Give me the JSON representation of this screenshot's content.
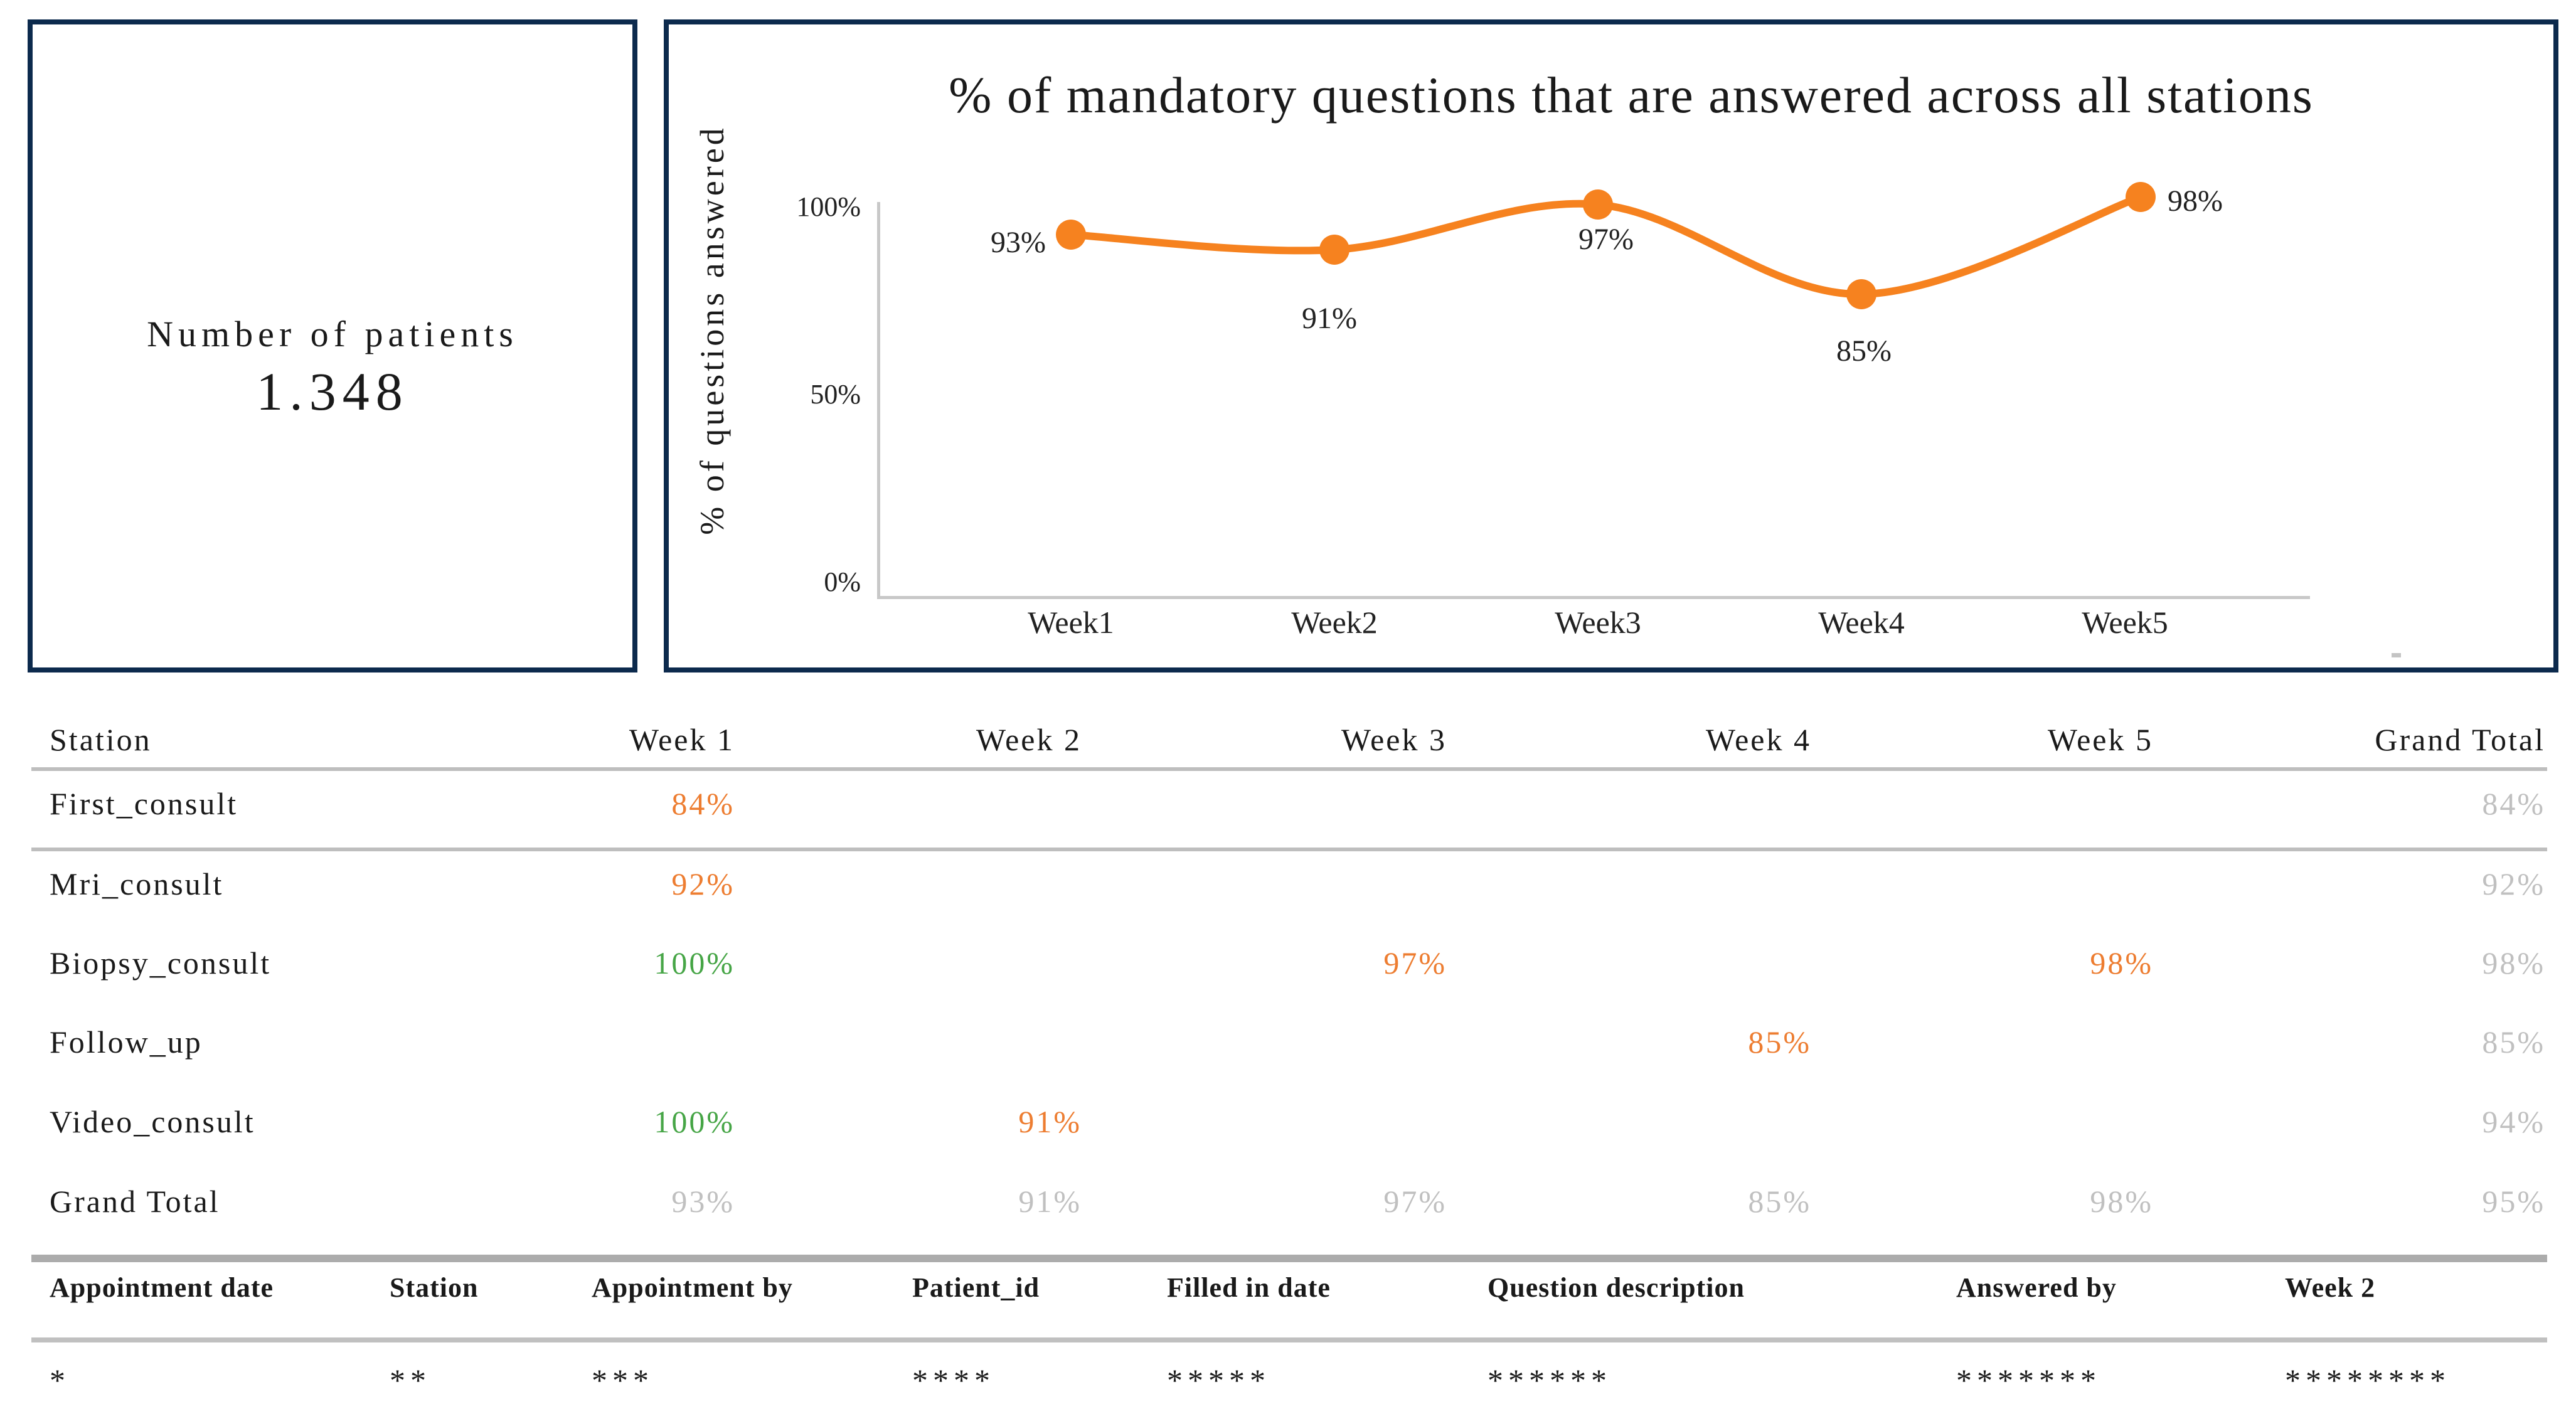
{
  "kpi_card": {
    "title": "Number of patients",
    "value": "1.348"
  },
  "chart": {
    "title": "% of mandatory questions that are answered across all stations",
    "y_axis_label": "% of questions answered",
    "y_ticks": [
      "100%",
      "50%",
      "0%"
    ]
  },
  "chart_data": {
    "type": "line",
    "title": "% of mandatory questions that are answered across all stations",
    "xlabel": "",
    "ylabel": "% of questions answered",
    "categories": [
      "Week1",
      "Week2",
      "Week3",
      "Week4",
      "Week5"
    ],
    "values": [
      93,
      91,
      97,
      85,
      98
    ],
    "data_labels": [
      "93%",
      "91%",
      "97%",
      "85%",
      "98%"
    ],
    "unit": "%",
    "ylim": [
      0,
      100
    ],
    "grid": false,
    "legend": "none",
    "series_color": "#F6821F"
  },
  "pivot_table": {
    "columns": [
      "Station",
      "Week 1",
      "Week 2",
      "Week 3",
      "Week 4",
      "Week 5",
      "Grand Total"
    ],
    "rows": [
      {
        "station": "First_consult",
        "cells": [
          {
            "col": "Week 1",
            "value": "84%",
            "style": "orange"
          },
          {
            "col": "Grand Total",
            "value": "84%",
            "style": "total"
          }
        ]
      },
      {
        "station": "Mri_consult",
        "cells": [
          {
            "col": "Week 1",
            "value": "92%",
            "style": "orange"
          },
          {
            "col": "Grand Total",
            "value": "92%",
            "style": "total"
          }
        ]
      },
      {
        "station": "Biopsy_consult",
        "cells": [
          {
            "col": "Week 1",
            "value": "100%",
            "style": "green"
          },
          {
            "col": "Week 3",
            "value": "97%",
            "style": "orange"
          },
          {
            "col": "Week 5",
            "value": "98%",
            "style": "orange"
          },
          {
            "col": "Grand Total",
            "value": "98%",
            "style": "total"
          }
        ]
      },
      {
        "station": "Follow_up",
        "cells": [
          {
            "col": "Week 4",
            "value": "85%",
            "style": "orange"
          },
          {
            "col": "Grand Total",
            "value": "85%",
            "style": "total"
          }
        ]
      },
      {
        "station": "Video_consult",
        "cells": [
          {
            "col": "Week 1",
            "value": "100%",
            "style": "green"
          },
          {
            "col": "Week 2",
            "value": "91%",
            "style": "orange"
          },
          {
            "col": "Grand Total",
            "value": "94%",
            "style": "total"
          }
        ]
      },
      {
        "station": "Grand Total",
        "cells": [
          {
            "col": "Week 1",
            "value": "93%",
            "style": "total"
          },
          {
            "col": "Week 2",
            "value": "91%",
            "style": "total"
          },
          {
            "col": "Week 3",
            "value": "97%",
            "style": "total"
          },
          {
            "col": "Week 4",
            "value": "85%",
            "style": "total"
          },
          {
            "col": "Week 5",
            "value": "98%",
            "style": "total"
          },
          {
            "col": "Grand Total",
            "value": "95%",
            "style": "total"
          }
        ]
      }
    ]
  },
  "detail_table": {
    "columns": [
      "Appointment date",
      "Station",
      "Appointment by",
      "Patient_id",
      "Filled in date",
      "Question description",
      "Answered by",
      "Week 2"
    ],
    "row": [
      "*",
      "**",
      "***",
      "****",
      "*****",
      "******",
      "*******",
      "********"
    ]
  },
  "colors": {
    "accent_navy": "#0C2A4D",
    "orange": "#ED7D31",
    "chart_orange": "#F6821F",
    "green": "#46A546",
    "muted_gray": "#C0C0C0"
  }
}
